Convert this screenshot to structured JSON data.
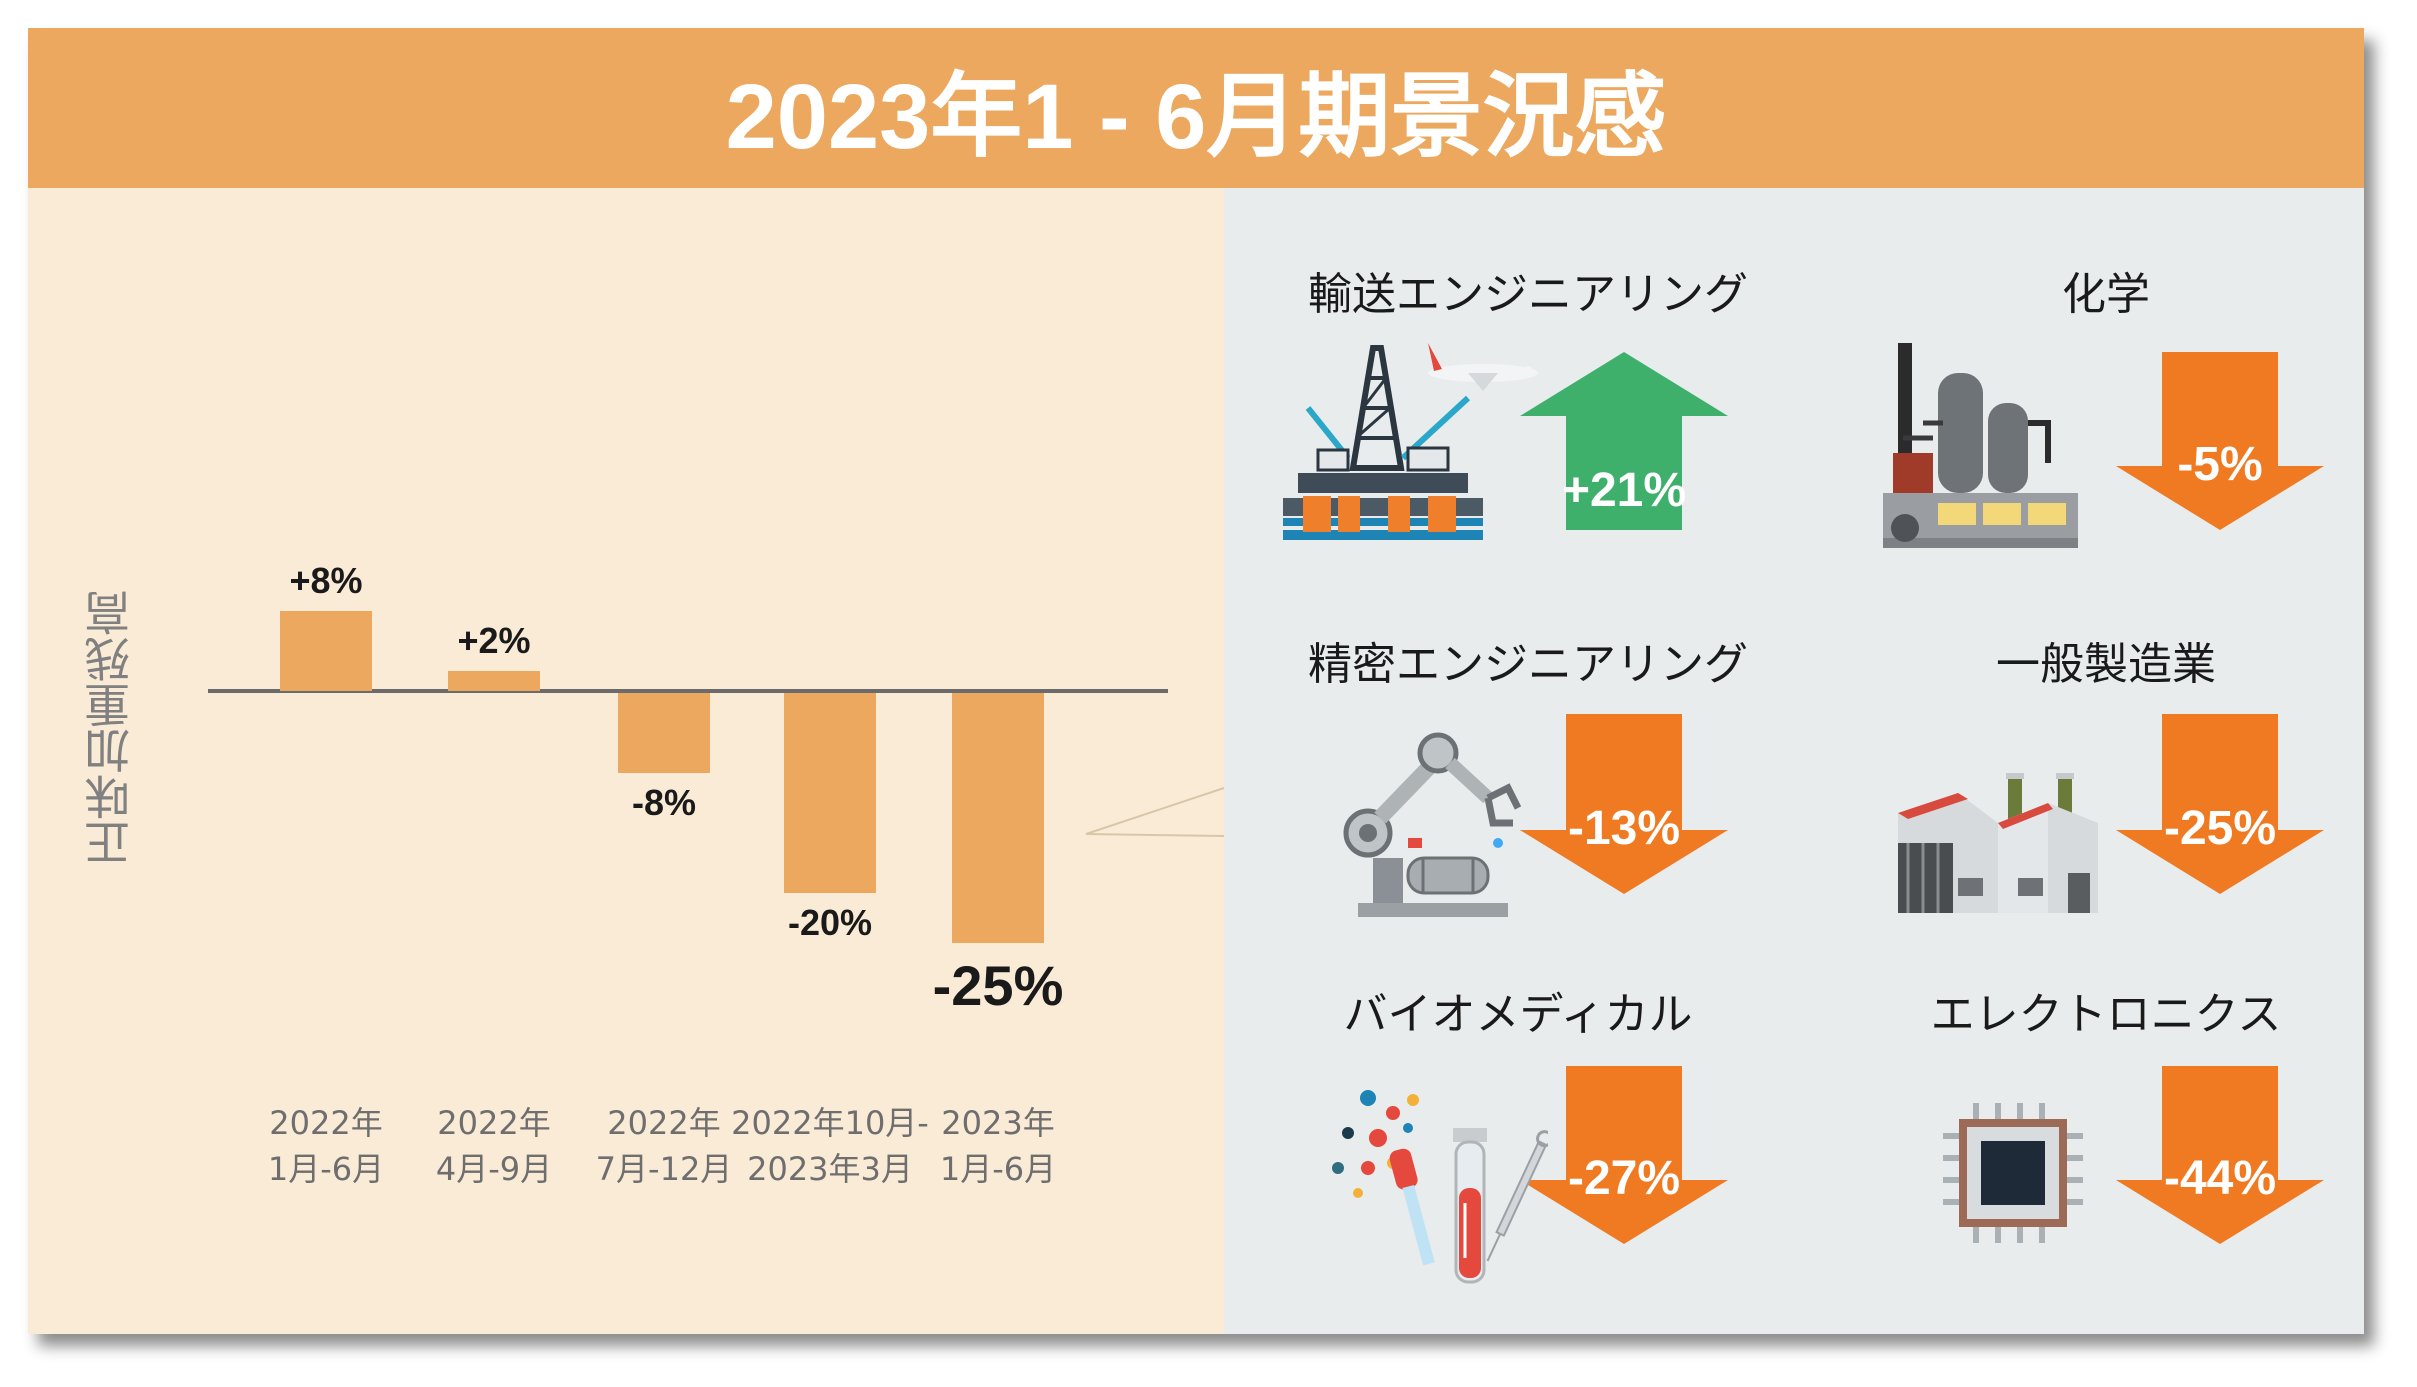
{
  "title": "2023年1 - 6月期景況感",
  "chart_data": {
    "type": "bar",
    "ylabel": "正味加重残高",
    "categories": [
      "2022年\n1月-6月",
      "2022年\n4月-9月",
      "2022年\n7月-12月",
      "2022年10月-\n2023年3月",
      "2023年\n1月-6月"
    ],
    "values": [
      8,
      2,
      -8,
      -20,
      -25
    ],
    "value_labels": [
      "+8%",
      "+2%",
      "-8%",
      "-20%",
      "-25%"
    ],
    "highlight_index": 4,
    "bar_color": "#eba85e"
  },
  "sectors": [
    {
      "name": "輸送エンジニアリング",
      "value": "+21%",
      "direction": "up",
      "color": "#3eb06b",
      "icon": "oil-rig-and-airplane-icon"
    },
    {
      "name": "化学",
      "value": "-5%",
      "direction": "down",
      "color": "#f07a22",
      "icon": "chemical-plant-icon"
    },
    {
      "name": "精密エンジニアリング",
      "value": "-13%",
      "direction": "down",
      "color": "#f07a22",
      "icon": "robot-arm-icon"
    },
    {
      "name": "一般製造業",
      "value": "-25%",
      "direction": "down",
      "color": "#f07a22",
      "icon": "factory-icon"
    },
    {
      "name": "バイオメディカル",
      "value": "-27%",
      "direction": "down",
      "color": "#f07a22",
      "icon": "lab-equipment-icon"
    },
    {
      "name": "エレクトロニクス",
      "value": "-44%",
      "direction": "down",
      "color": "#f07a22",
      "icon": "microchip-icon"
    }
  ]
}
